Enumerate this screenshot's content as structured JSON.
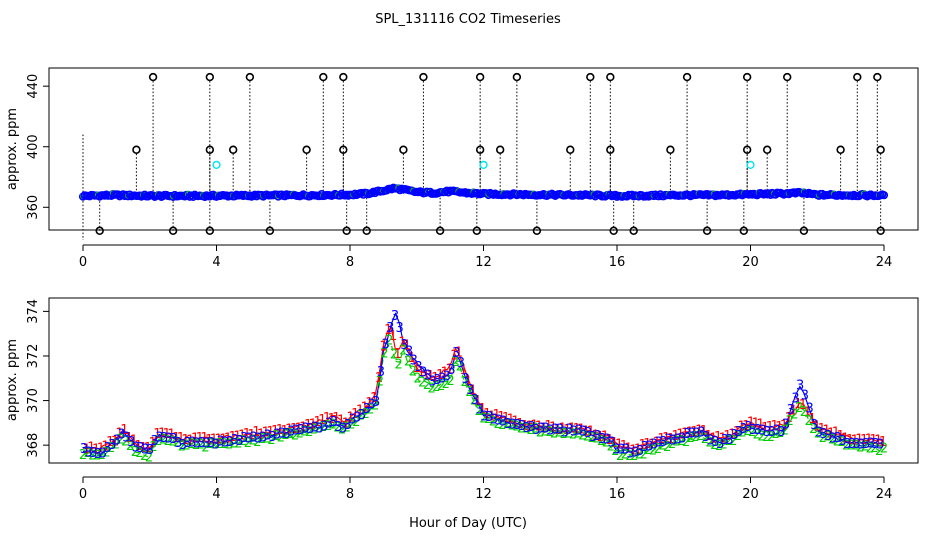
{
  "chart_data": {
    "title": "SPL_131116  CO2 Timeseries",
    "xlabel": "Hour of Day (UTC)",
    "x_ticks": [
      "0",
      "4",
      "8",
      "12",
      "16",
      "20",
      "24"
    ],
    "x_tick_values": [
      0,
      4,
      8,
      12,
      16,
      20,
      24
    ],
    "xlim": [
      -1,
      25
    ],
    "colors": {
      "series1": "#ff0000",
      "series2": "#00cd00",
      "series3": "#0000ff",
      "outlier": "#000000",
      "cyan": "#00e5ee",
      "baseline": "#0000ff"
    },
    "panels": [
      {
        "type": "scatter",
        "ylabel": "approx. ppm",
        "ylim": [
          345,
          452
        ],
        "y_ticks": [
          "360",
          "400",
          "440"
        ],
        "y_tick_values": [
          360,
          400,
          440
        ],
        "baseline": {
          "x": [
            0,
            1,
            2,
            3,
            4,
            5,
            6,
            7,
            8,
            8.5,
            9,
            9.3,
            9.5,
            10,
            10.5,
            11,
            11.5,
            12,
            13,
            14,
            15,
            16,
            17,
            18,
            19,
            20,
            21,
            21.5,
            22,
            23,
            24
          ],
          "y": [
            367.5,
            368,
            367.5,
            367.5,
            367.6,
            367.7,
            367.8,
            368,
            368.3,
            369,
            371,
            372.5,
            372,
            370,
            369.5,
            370.5,
            369.5,
            368.8,
            368.5,
            368.2,
            368,
            367.5,
            367.7,
            368,
            368,
            368.5,
            369,
            369.5,
            368.2,
            368,
            367.8
          ]
        },
        "outliers_high": [
          2.1,
          3.8,
          5.0,
          7.2,
          7.8,
          10.2,
          11.9,
          13.0,
          15.2,
          15.8,
          18.1,
          19.9,
          21.1,
          23.2,
          23.8
        ],
        "outliers_high_value": 446,
        "outliers_mid": [
          1.6,
          3.8,
          4.5,
          6.7,
          7.8,
          9.6,
          11.9,
          12.5,
          14.6,
          15.8,
          17.6,
          19.9,
          20.5,
          22.7,
          23.9
        ],
        "outliers_mid_value": 398,
        "outliers_low": [
          0.5,
          2.7,
          3.8,
          5.6,
          7.9,
          8.5,
          10.7,
          11.8,
          13.6,
          15.9,
          16.5,
          18.7,
          19.8,
          21.6,
          23.9
        ],
        "outliers_low_value": 344.5,
        "cyan_points": [
          {
            "x": 4.0,
            "y": 388
          },
          {
            "x": 12.0,
            "y": 388
          },
          {
            "x": 20.0,
            "y": 388
          }
        ],
        "drop_lines_from": 345
      },
      {
        "type": "line",
        "ylabel": "approx. ppm",
        "ylim": [
          367.2,
          374.6
        ],
        "y_ticks": [
          "368",
          "370",
          "372",
          "374"
        ],
        "y_tick_values": [
          368,
          370,
          372,
          374
        ],
        "series_labels": [
          "1",
          "2",
          "3"
        ],
        "x": [
          0,
          0.5,
          1,
          1.2,
          1.5,
          1.8,
          2,
          2.2,
          2.5,
          3,
          3.5,
          4,
          5,
          6,
          7,
          7.5,
          7.8,
          8,
          8.5,
          8.8,
          9,
          9.2,
          9.4,
          9.6,
          10,
          10.5,
          11,
          11.2,
          11.5,
          12,
          13,
          14,
          15,
          15.8,
          16,
          16.5,
          17,
          18,
          18.5,
          19,
          19.5,
          19.8,
          20,
          20.5,
          21,
          21.5,
          22,
          23,
          23.8
        ],
        "series": [
          {
            "name": "1",
            "values": [
              367.9,
              367.8,
              368.3,
              368.7,
              368.2,
              367.9,
              367.8,
              368.5,
              368.5,
              368.3,
              368.3,
              368.3,
              368.5,
              368.7,
              369.0,
              369.3,
              369.0,
              369.2,
              369.8,
              370.3,
              372.5,
              373.5,
              372.0,
              372.8,
              371.4,
              371.0,
              371.5,
              372.5,
              371.0,
              369.5,
              369.0,
              368.8,
              368.7,
              368.3,
              368.0,
              367.8,
              368.1,
              368.5,
              368.7,
              368.3,
              368.5,
              368.9,
              369.0,
              368.8,
              368.9,
              370.0,
              368.8,
              368.3,
              368.2
            ]
          },
          {
            "name": "2",
            "values": [
              367.6,
              367.6,
              368.0,
              368.4,
              367.8,
              367.6,
              367.5,
              368.2,
              368.2,
              368.0,
              368.0,
              368.0,
              368.2,
              368.4,
              368.7,
              368.9,
              368.7,
              368.9,
              369.5,
              369.8,
              372.0,
              372.8,
              371.5,
              372.2,
              371.0,
              370.6,
              370.9,
              372.0,
              370.6,
              369.2,
              368.8,
              368.6,
              368.5,
              368.0,
              367.6,
              367.5,
              367.8,
              368.2,
              368.4,
              368.0,
              368.2,
              368.7,
              368.6,
              368.4,
              368.6,
              369.8,
              368.5,
              368.0,
              367.8
            ]
          },
          {
            "name": "3",
            "values": [
              367.8,
              367.6,
              368.2,
              368.6,
              368.0,
              367.8,
              367.7,
              368.4,
              368.4,
              368.1,
              368.1,
              368.1,
              368.3,
              368.5,
              368.8,
              369.0,
              368.8,
              369.0,
              369.6,
              370.0,
              372.2,
              373.2,
              374.0,
              372.5,
              371.7,
              370.8,
              371.2,
              372.3,
              370.8,
              369.3,
              368.9,
              368.7,
              368.6,
              368.2,
              367.8,
              367.7,
              368.0,
              368.4,
              368.6,
              368.1,
              368.4,
              368.8,
              368.8,
              368.6,
              368.7,
              370.8,
              368.6,
              368.1,
              368.0
            ]
          }
        ]
      }
    ]
  }
}
